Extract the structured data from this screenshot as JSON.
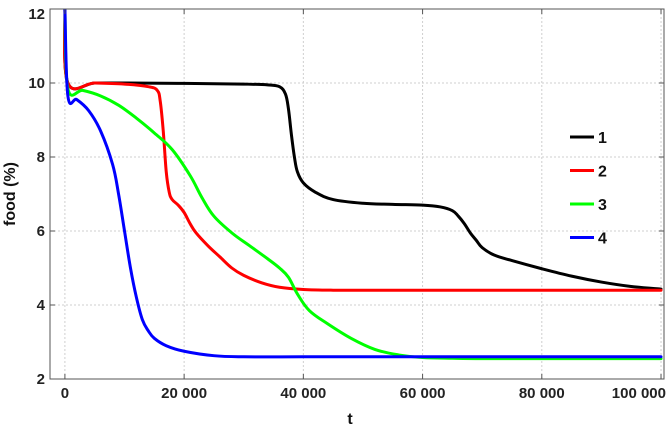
{
  "chart_data": {
    "type": "line",
    "xlabel": "t",
    "ylabel": "food (%)",
    "xlim": [
      -2500,
      100500
    ],
    "ylim": [
      2,
      12
    ],
    "xticks": [
      0,
      20000,
      40000,
      60000,
      80000,
      100000
    ],
    "xtick_labels": [
      "0",
      "20 000",
      "40 000",
      "60 000",
      "80 000",
      "100 000"
    ],
    "yticks": [
      2,
      4,
      6,
      8,
      10,
      12
    ],
    "ytick_labels": [
      "2",
      "4",
      "6",
      "8",
      "10",
      "12"
    ],
    "grid": true,
    "legend_position": "right",
    "series": [
      {
        "name": "1",
        "color": "#000000",
        "x": [
          0,
          500,
          5000,
          10000,
          20000,
          30000,
          34000,
          36000,
          37000,
          37500,
          38000,
          38500,
          39000,
          40000,
          42000,
          45000,
          50000,
          55000,
          60000,
          63000,
          65000,
          66000,
          67000,
          68000,
          69000,
          70000,
          72000,
          75000,
          80000,
          85000,
          90000,
          95000,
          100000
        ],
        "y": [
          12,
          10,
          10,
          10,
          9.99,
          9.97,
          9.95,
          9.9,
          9.7,
          9.3,
          8.6,
          8,
          7.6,
          7.3,
          7.05,
          6.85,
          6.75,
          6.72,
          6.7,
          6.65,
          6.55,
          6.4,
          6.2,
          5.95,
          5.75,
          5.55,
          5.35,
          5.2,
          4.98,
          4.78,
          4.62,
          4.5,
          4.43
        ]
      },
      {
        "name": "2",
        "color": "#ff0000",
        "x": [
          0,
          500,
          5000,
          10000,
          14000,
          15500,
          16000,
          16500,
          17000,
          17500,
          18000,
          19000,
          20000,
          21000,
          22000,
          24000,
          26000,
          28000,
          30000,
          33000,
          36000,
          40000,
          45000,
          50000,
          60000,
          70000,
          80000,
          90000,
          100000
        ],
        "y": [
          12,
          10,
          10,
          9.97,
          9.9,
          9.8,
          9.5,
          8.7,
          7.6,
          7.05,
          6.85,
          6.7,
          6.5,
          6.2,
          5.95,
          5.6,
          5.3,
          5.0,
          4.8,
          4.6,
          4.48,
          4.42,
          4.4,
          4.4,
          4.4,
          4.4,
          4.4,
          4.4,
          4.4
        ]
      },
      {
        "name": "3",
        "color": "#00ff00",
        "x": [
          0,
          500,
          3000,
          6000,
          9000,
          12000,
          15000,
          18000,
          21000,
          23000,
          25000,
          28000,
          31000,
          34000,
          36000,
          37500,
          39000,
          41000,
          44000,
          48000,
          52000,
          56000,
          60000,
          65000,
          70000,
          80000,
          90000,
          100000
        ],
        "y": [
          12,
          9.85,
          9.8,
          9.65,
          9.4,
          9.05,
          8.65,
          8.2,
          7.5,
          6.9,
          6.4,
          5.95,
          5.6,
          5.25,
          5.0,
          4.75,
          4.3,
          3.85,
          3.5,
          3.1,
          2.8,
          2.65,
          2.58,
          2.56,
          2.55,
          2.55,
          2.55,
          2.55
        ]
      },
      {
        "name": "4",
        "color": "#0000ff",
        "x": [
          0,
          500,
          2000,
          4000,
          6000,
          8000,
          9000,
          10000,
          11000,
          12000,
          13000,
          14000,
          15000,
          17000,
          20000,
          25000,
          30000,
          40000,
          50000,
          60000,
          80000,
          100000
        ],
        "y": [
          12,
          9.65,
          9.55,
          9.25,
          8.7,
          7.8,
          7.0,
          6.0,
          5.0,
          4.2,
          3.6,
          3.3,
          3.1,
          2.9,
          2.75,
          2.63,
          2.6,
          2.6,
          2.6,
          2.6,
          2.6,
          2.6
        ]
      }
    ]
  }
}
